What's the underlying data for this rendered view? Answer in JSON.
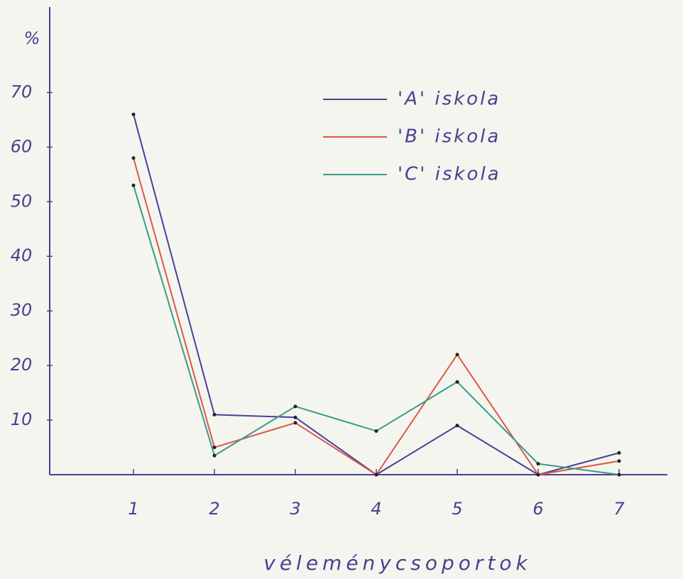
{
  "chart_data": {
    "type": "line",
    "y_label": "%",
    "x_label": "véleménycsoportok",
    "categories": [
      "1",
      "2",
      "3",
      "4",
      "5",
      "6",
      "7"
    ],
    "series": [
      {
        "name": "'A' iskola",
        "color": "#4a3f9a",
        "values": [
          66,
          11,
          10.5,
          0,
          9,
          0,
          4
        ]
      },
      {
        "name": "'B' iskola",
        "color": "#d9574a",
        "values": [
          58,
          5,
          9.5,
          0,
          22,
          0,
          2.5
        ]
      },
      {
        "name": "'C' iskola",
        "color": "#3a9a8a",
        "values": [
          53,
          3.5,
          12.5,
          8,
          17,
          2,
          0
        ]
      }
    ],
    "ylim": [
      0,
      85
    ],
    "yticks": [
      10,
      20,
      30,
      40,
      50,
      60,
      70
    ],
    "grid": false
  }
}
